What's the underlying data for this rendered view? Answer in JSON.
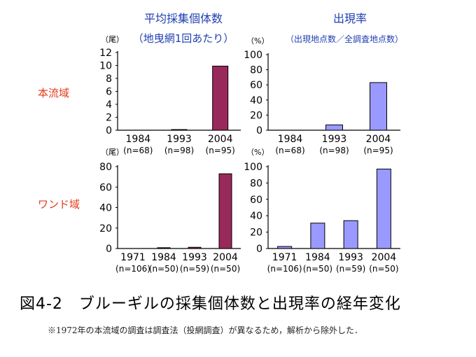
{
  "header": {
    "left_title": "平均採集個体数",
    "left_subtitle": "（地曳網1回あたり）",
    "right_title": "出現率",
    "right_subtitle": "（出現地点数／全調査地点数）"
  },
  "row_labels": [
    "本流域",
    "ワンド域"
  ],
  "caption": "図4-2　ブルーギルの採集個体数と出現率の経年変化",
  "note": "※1972年の本流域の調査は調査法（投網調査）が異なるため，解析から除外した．",
  "colors": {
    "count_bar": "#99295a",
    "rate_bar": "#9999ff",
    "title_text": "#1f3fb0",
    "row_label_text": "#e23a1a"
  },
  "chart_data": [
    {
      "type": "bar",
      "unit_label": "（尾）",
      "categories": [
        "1984",
        "1993",
        "2004"
      ],
      "category_sublabels": [
        "(n=68)",
        "(n=98)",
        "(n=95)"
      ],
      "values": [
        0,
        0.1,
        9.9
      ],
      "ylim": [
        0,
        12
      ],
      "yticks": [
        "0",
        "2",
        "4",
        "6",
        "8",
        "10",
        "12"
      ]
    },
    {
      "type": "bar",
      "unit_label": "（%）",
      "categories": [
        "1984",
        "1993",
        "2004"
      ],
      "category_sublabels": [
        "(n=68)",
        "(n=98)",
        "(n=95)"
      ],
      "values": [
        0,
        7,
        63
      ],
      "ylim": [
        0,
        100
      ],
      "yticks": [
        "0",
        "20",
        "40",
        "60",
        "80",
        "100"
      ]
    },
    {
      "type": "bar",
      "unit_label": "（尾）",
      "categories": [
        "1971",
        "1984",
        "1993",
        "2004"
      ],
      "category_sublabels": [
        "(n=106)",
        "(n=50)",
        "(n=59)",
        "(n=50)"
      ],
      "values": [
        0,
        0.8,
        1.2,
        73
      ],
      "ylim": [
        0,
        80
      ],
      "yticks": [
        "0",
        "20",
        "40",
        "60",
        "80"
      ]
    },
    {
      "type": "bar",
      "unit_label": "（%）",
      "categories": [
        "1971",
        "1984",
        "1993",
        "2004"
      ],
      "category_sublabels": [
        "(n=106)",
        "(n=50)",
        "(n=59)",
        "(n=50)"
      ],
      "values": [
        2.5,
        31,
        34,
        97
      ],
      "ylim": [
        0,
        100
      ],
      "yticks": [
        "0",
        "20",
        "40",
        "60",
        "80",
        "100"
      ]
    }
  ]
}
